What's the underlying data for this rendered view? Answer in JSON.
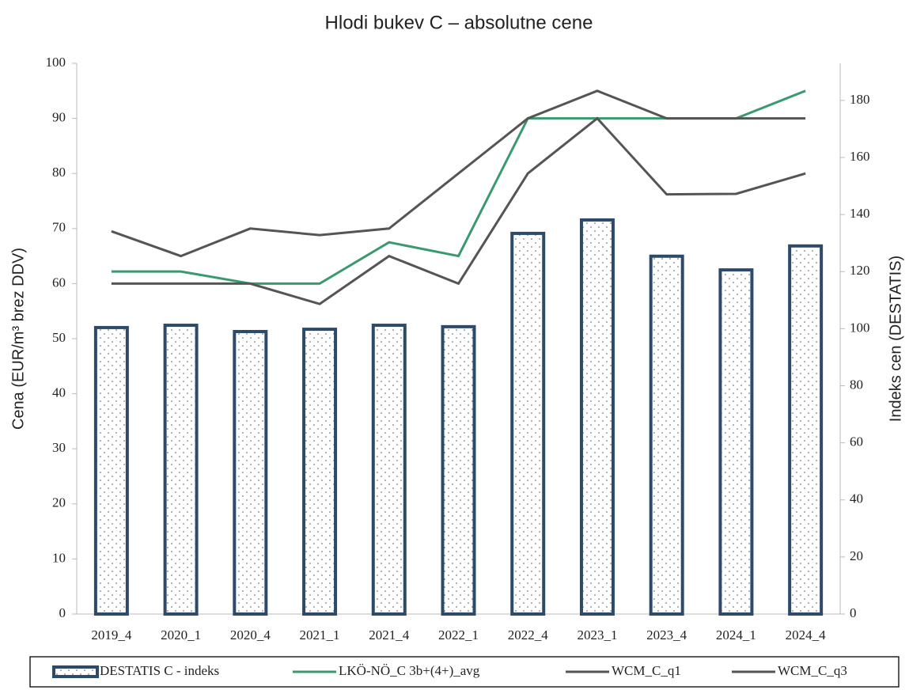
{
  "chart_data": {
    "type": "combo",
    "title": "Hlodi bukev C – absolutne cene",
    "y_label": "Cena (EUR/m³ brez DDV)",
    "y2_label": "Indeks cen  (DESTATIS)",
    "categories": [
      "2019_4",
      "2020_1",
      "2020_4",
      "2021_1",
      "2021_4",
      "2022_1",
      "2022_4",
      "2023_1",
      "2023_4",
      "2024_1",
      "2024_4"
    ],
    "series": [
      {
        "name": "DESTATIS C - indeks",
        "type": "bar",
        "axis": "y2",
        "color": "#2e4a6b",
        "values": [
          100.4,
          101.2,
          99.0,
          99.8,
          101.2,
          100.7,
          133.4,
          138.1,
          125.4,
          120.6,
          129.0
        ]
      },
      {
        "name": "LKÖ-NÖ_C 3b+(4+)_avg",
        "type": "line",
        "color": "#3a9a6e",
        "values": [
          62.2,
          62.2,
          60,
          60,
          67.5,
          65,
          90,
          90,
          90,
          90,
          95
        ]
      },
      {
        "name": "WCM_C_q1",
        "type": "line",
        "color": "#555555",
        "values": [
          60,
          60,
          60,
          56.3,
          65,
          60,
          80,
          90,
          76.2,
          76.3,
          80
        ]
      },
      {
        "name": "WCM_C_q3",
        "type": "line",
        "color": "#555555",
        "values": [
          69.5,
          65,
          70,
          68.8,
          70,
          80,
          90,
          95,
          90,
          90,
          90
        ]
      }
    ],
    "ylim": [
      0,
      100
    ],
    "yticks": [
      0,
      10,
      20,
      30,
      40,
      50,
      60,
      70,
      80,
      90,
      100
    ],
    "y2lim": [
      0,
      193
    ],
    "y2ticks": [
      0,
      20,
      40,
      60,
      80,
      100,
      120,
      140,
      160,
      180
    ]
  }
}
